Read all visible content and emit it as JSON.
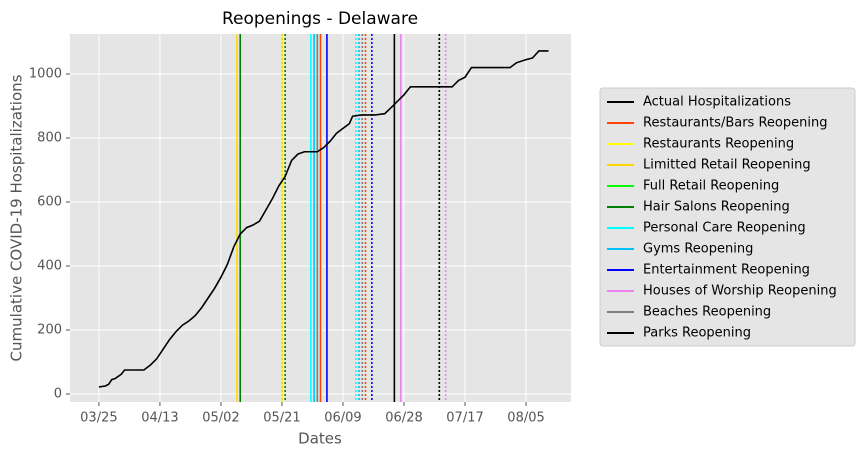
{
  "chart_data": {
    "type": "line",
    "title": "Reopenings - Delaware",
    "x_label": "Dates",
    "y_label": "Cumulative COVID-19 Hospitalizations",
    "x": [
      "03/25",
      "03/27",
      "03/28",
      "03/29",
      "03/30",
      "04/01",
      "04/02",
      "04/06",
      "04/08",
      "04/10",
      "04/12",
      "04/14",
      "04/16",
      "04/18",
      "04/20",
      "04/22",
      "04/24",
      "04/26",
      "04/28",
      "04/30",
      "05/02",
      "05/04",
      "05/06",
      "05/08",
      "05/10",
      "05/12",
      "05/14",
      "05/16",
      "05/18",
      "05/20",
      "05/22",
      "05/24",
      "05/26",
      "05/28",
      "06/01",
      "06/03",
      "06/05",
      "06/07",
      "06/09",
      "06/11",
      "06/12",
      "06/15",
      "06/19",
      "06/22",
      "06/24",
      "06/26",
      "06/28",
      "06/30",
      "07/03",
      "07/10",
      "07/13",
      "07/15",
      "07/17",
      "07/19",
      "07/25",
      "07/31",
      "08/02",
      "08/05",
      "08/07",
      "08/09",
      "08/12"
    ],
    "series": [
      {
        "name": "Actual Hospitalizations",
        "color": "#000000",
        "values": [
          22,
          25,
          30,
          45,
          48,
          62,
          75,
          75,
          75,
          90,
          110,
          140,
          170,
          195,
          215,
          228,
          245,
          270,
          300,
          330,
          365,
          405,
          460,
          500,
          520,
          528,
          540,
          575,
          610,
          650,
          680,
          730,
          750,
          757,
          757,
          770,
          790,
          815,
          830,
          845,
          868,
          872,
          872,
          876,
          895,
          915,
          935,
          960,
          960,
          960,
          960,
          980,
          990,
          1020,
          1020,
          1020,
          1035,
          1045,
          1050,
          1072,
          1072
        ]
      }
    ],
    "event_line_styles": [
      "solid",
      "dotted"
    ],
    "events": [
      {
        "name": "Restaurants/Bars Reopening",
        "color": "#ff4500",
        "x": [
          "06/02",
          "06/16"
        ]
      },
      {
        "name": "Restaurants Reopening",
        "color": "#ffff00",
        "x": [
          "05/21",
          "06/04"
        ]
      },
      {
        "name": "Limitted Retail Reopening",
        "color": "#ffd700",
        "x": [
          "05/07",
          "05/21"
        ]
      },
      {
        "name": "Full Retail Reopening",
        "color": "#00ff00",
        "x": [
          "06/01",
          "06/15"
        ]
      },
      {
        "name": "Hair Salons Reopening",
        "color": "#008000",
        "x": [
          "05/08",
          "05/22"
        ]
      },
      {
        "name": "Personal Care Reopening",
        "color": "#00ffff",
        "x": [
          "05/30",
          "06/13"
        ]
      },
      {
        "name": "Gyms Reopening",
        "color": "#00bfff",
        "x": [
          "05/31",
          "06/14"
        ]
      },
      {
        "name": "Entertainment Reopening",
        "color": "#0000ff",
        "x": [
          "06/04",
          "06/18"
        ]
      },
      {
        "name": "Houses of Worship Reopening",
        "color": "#ee82ee",
        "x": [
          "06/27",
          "07/11"
        ]
      },
      {
        "name": "Beaches Reopening",
        "color": "#808080",
        "x": [
          "06/01",
          "06/15"
        ]
      },
      {
        "name": "Parks Reopening",
        "color": "#000000",
        "x": [
          "06/25",
          "07/09"
        ]
      }
    ],
    "xlim": [
      "03/16",
      "08/19"
    ],
    "xticks": [
      "03/25",
      "04/13",
      "05/02",
      "05/21",
      "06/09",
      "06/28",
      "07/17",
      "08/05"
    ],
    "ylim": [
      -25,
      1125
    ],
    "yticks": [
      0,
      200,
      400,
      600,
      800,
      1000
    ],
    "grid": true
  }
}
